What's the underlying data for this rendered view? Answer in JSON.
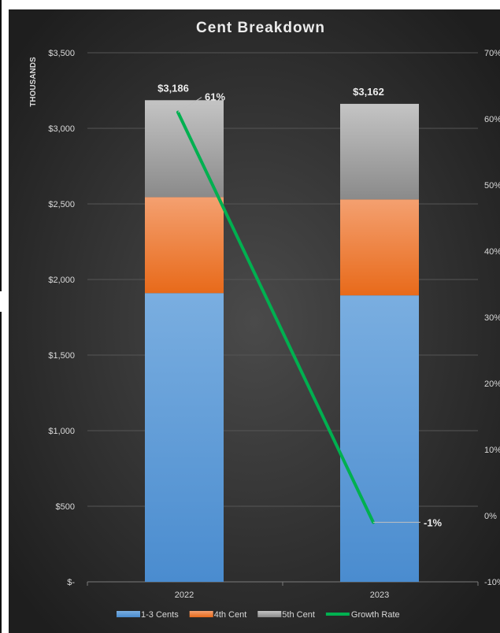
{
  "chart_data": {
    "type": "bar",
    "stacked": true,
    "title": "Cent Breakdown",
    "ylabel": "THOUSANDS",
    "categories": [
      "2022",
      "2023"
    ],
    "ylim": [
      0,
      3500
    ],
    "y_ticks": [
      "$-",
      "$500",
      "$1,000",
      "$1,500",
      "$2,000",
      "$2,500",
      "$3,000",
      "$3,500"
    ],
    "y2lim": [
      -10,
      70
    ],
    "y2_ticks": [
      "-10%",
      "0%",
      "10%",
      "20%",
      "30%",
      "40%",
      "50%",
      "60%",
      "70%"
    ],
    "series": [
      {
        "name": "1-3 Cents",
        "values": [
          1910,
          1895
        ],
        "color": "#5b9bd5"
      },
      {
        "name": "4th Cent",
        "values": [
          635,
          635
        ],
        "color": "#ed7d31"
      },
      {
        "name": "5th Cent",
        "values": [
          641,
          632
        ],
        "color": "#a5a5a5"
      }
    ],
    "totals": [
      "$3,186",
      "$3,162"
    ],
    "line_series": {
      "name": "Growth Rate",
      "values": [
        61,
        -1
      ],
      "labels": [
        "61%",
        "-1%"
      ],
      "color": "#00b050",
      "axis": "secondary"
    },
    "legend_position": "bottom",
    "grid": true,
    "colors": {
      "background_center": "#4a4a4a",
      "background_edge": "#1e1e1e",
      "text": "#d9d9d9",
      "gridline": "#555555"
    }
  }
}
